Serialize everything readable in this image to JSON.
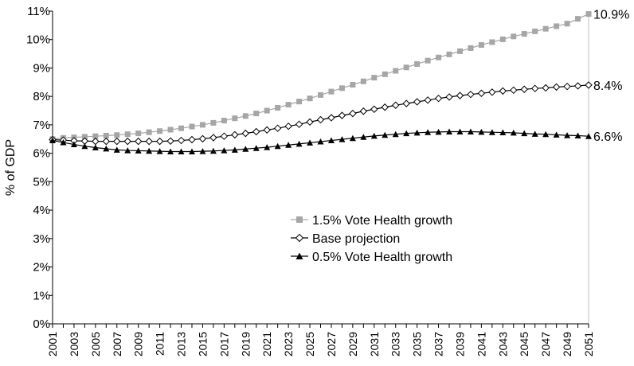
{
  "chart_data": {
    "type": "line",
    "title": "",
    "xlabel": "",
    "ylabel": "% of GDP",
    "xlim": [
      2001,
      2051
    ],
    "ylim": [
      0,
      11
    ],
    "y_tick_labels": [
      "0%",
      "1%",
      "2%",
      "3%",
      "4%",
      "5%",
      "6%",
      "7%",
      "8%",
      "9%",
      "10%",
      "11%"
    ],
    "x_tick_labels": [
      "2001",
      "2003",
      "2005",
      "2007",
      "2009",
      "2011",
      "2013",
      "2015",
      "2017",
      "2019",
      "2021",
      "2023",
      "2025",
      "2027",
      "2029",
      "2031",
      "2033",
      "2035",
      "2037",
      "2039",
      "2041",
      "2043",
      "2045",
      "2047",
      "2049",
      "2051"
    ],
    "grid": false,
    "legend_position": "center-right",
    "x": [
      2001,
      2002,
      2003,
      2004,
      2005,
      2006,
      2007,
      2008,
      2009,
      2010,
      2011,
      2012,
      2013,
      2014,
      2015,
      2016,
      2017,
      2018,
      2019,
      2020,
      2021,
      2022,
      2023,
      2024,
      2025,
      2026,
      2027,
      2028,
      2029,
      2030,
      2031,
      2032,
      2033,
      2034,
      2035,
      2036,
      2037,
      2038,
      2039,
      2040,
      2041,
      2042,
      2043,
      2044,
      2045,
      2046,
      2047,
      2048,
      2049,
      2050,
      2051
    ],
    "series": [
      {
        "name": "1.5% Vote Health growth",
        "color": "#a6a6a6",
        "marker": "square",
        "end_label": "10.9%",
        "values": [
          6.5,
          6.54,
          6.56,
          6.58,
          6.6,
          6.62,
          6.64,
          6.67,
          6.7,
          6.74,
          6.78,
          6.83,
          6.88,
          6.94,
          7.0,
          7.07,
          7.15,
          7.23,
          7.31,
          7.4,
          7.5,
          7.6,
          7.71,
          7.82,
          7.93,
          8.05,
          8.17,
          8.29,
          8.41,
          8.53,
          8.66,
          8.78,
          8.9,
          9.02,
          9.14,
          9.26,
          9.37,
          9.48,
          9.59,
          9.7,
          9.81,
          9.91,
          10.01,
          10.11,
          10.2,
          10.29,
          10.38,
          10.47,
          10.56,
          10.73,
          10.9
        ]
      },
      {
        "name": "Base projection",
        "color": "#000000",
        "marker": "diamond",
        "end_label": "8.4%",
        "values": [
          6.48,
          6.46,
          6.44,
          6.43,
          6.42,
          6.42,
          6.42,
          6.42,
          6.42,
          6.42,
          6.42,
          6.43,
          6.45,
          6.48,
          6.51,
          6.55,
          6.6,
          6.65,
          6.7,
          6.76,
          6.82,
          6.88,
          6.95,
          7.02,
          7.1,
          7.18,
          7.25,
          7.33,
          7.4,
          7.48,
          7.55,
          7.62,
          7.69,
          7.75,
          7.81,
          7.87,
          7.93,
          7.98,
          8.03,
          8.07,
          8.11,
          8.15,
          8.19,
          8.22,
          8.25,
          8.28,
          8.3,
          8.33,
          8.35,
          8.37,
          8.4
        ]
      },
      {
        "name": "0.5% Vote Health growth",
        "color": "#000000",
        "marker": "triangle",
        "end_label": "6.6%",
        "values": [
          6.45,
          6.38,
          6.31,
          6.25,
          6.2,
          6.16,
          6.12,
          6.1,
          6.09,
          6.08,
          6.07,
          6.06,
          6.06,
          6.06,
          6.07,
          6.08,
          6.1,
          6.12,
          6.15,
          6.18,
          6.21,
          6.25,
          6.29,
          6.33,
          6.37,
          6.41,
          6.45,
          6.49,
          6.53,
          6.57,
          6.61,
          6.64,
          6.67,
          6.7,
          6.72,
          6.74,
          6.75,
          6.76,
          6.76,
          6.76,
          6.75,
          6.74,
          6.73,
          6.72,
          6.7,
          6.68,
          6.67,
          6.65,
          6.63,
          6.62,
          6.6
        ]
      }
    ]
  }
}
